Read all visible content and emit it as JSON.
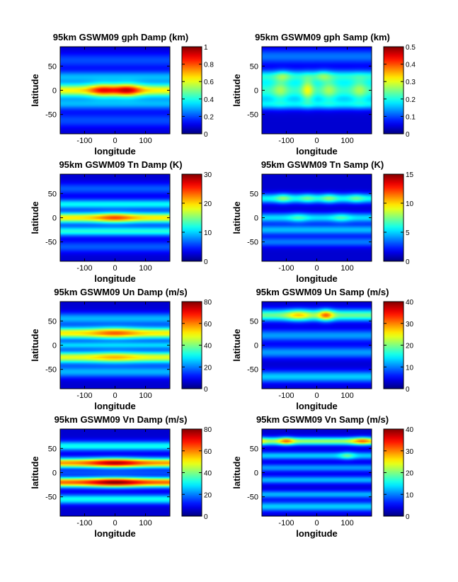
{
  "figure": {
    "background": "#ffffff",
    "colormap": "jet"
  },
  "chart_data": [
    {
      "type": "heatmap",
      "title": "95km GSWM09 gph Damp (km)",
      "xlabel": "longitude",
      "ylabel": "latitude",
      "xlim": [
        -180,
        180
      ],
      "ylim": [
        -90,
        90
      ],
      "xticks": [
        -100,
        0,
        100
      ],
      "yticks": [
        50,
        0,
        -50
      ],
      "colorbar": {
        "min": 0,
        "max": 1,
        "ticks": [
          "1",
          "0.8",
          "0.6",
          "0.4",
          "0.2",
          "0"
        ]
      },
      "features": [
        {
          "lat": 0,
          "lat_width": 14,
          "peak": 0.55,
          "lon_mod": [
            {
              "lon": -40,
              "width": 45,
              "amp": 0.25
            },
            {
              "lon": 40,
              "width": 45,
              "amp": 0.3
            }
          ]
        },
        {
          "lat": 28,
          "lat_width": 12,
          "peak": 0.22
        },
        {
          "lat": -28,
          "lat_width": 12,
          "peak": 0.22
        },
        {
          "lat": 62,
          "lat_width": 15,
          "peak": 0.12
        },
        {
          "lat": -62,
          "lat_width": 15,
          "peak": 0.12
        }
      ]
    },
    {
      "type": "heatmap",
      "title": "95km GSWM09 gph Samp (km)",
      "xlabel": "longitude",
      "ylabel": "latitude",
      "xlim": [
        -180,
        180
      ],
      "ylim": [
        -90,
        90
      ],
      "xticks": [
        -100,
        0,
        100
      ],
      "yticks": [
        50,
        0,
        -50
      ],
      "colorbar": {
        "min": 0,
        "max": 0.5,
        "ticks": [
          "0.5",
          "0.4",
          "0.3",
          "0.2",
          "0.1",
          "0"
        ]
      },
      "features": [
        {
          "lat": 0,
          "lat_width": 25,
          "peak": 0.17,
          "lon_mod": [
            {
              "lon": -120,
              "width": 25,
              "amp": 0.06
            },
            {
              "lon": -30,
              "width": 20,
              "amp": 0.1
            },
            {
              "lon": 40,
              "width": 25,
              "amp": 0.06
            },
            {
              "lon": 140,
              "width": 25,
              "amp": 0.06
            }
          ]
        },
        {
          "lat": 30,
          "lat_width": 12,
          "peak": 0.12,
          "lon_mod": [
            {
              "lon": -110,
              "width": 25,
              "amp": 0.05
            },
            {
              "lon": 20,
              "width": 25,
              "amp": 0.05
            }
          ]
        },
        {
          "lat": -30,
          "lat_width": 10,
          "peak": 0.1
        },
        {
          "lat": 70,
          "lat_width": 15,
          "peak": 0.08
        }
      ]
    },
    {
      "type": "heatmap",
      "title": "95km GSWM09 Tn Damp (K)",
      "xlabel": "longitude",
      "ylabel": "latitude",
      "xlim": [
        -180,
        180
      ],
      "ylim": [
        -90,
        90
      ],
      "xticks": [
        -100,
        0,
        100
      ],
      "yticks": [
        50,
        0,
        -50
      ],
      "colorbar": {
        "min": 0,
        "max": 30,
        "ticks": [
          "30",
          "20",
          "10",
          "0"
        ]
      },
      "features": [
        {
          "lat": 0,
          "lat_width": 11,
          "peak": 17,
          "lon_mod": [
            {
              "lon": 0,
              "width": 60,
              "amp": 5
            }
          ]
        },
        {
          "lat": 28,
          "lat_width": 10,
          "peak": 9
        },
        {
          "lat": -28,
          "lat_width": 10,
          "peak": 10
        },
        {
          "lat": 60,
          "lat_width": 12,
          "peak": 4
        },
        {
          "lat": -60,
          "lat_width": 12,
          "peak": 4
        }
      ]
    },
    {
      "type": "heatmap",
      "title": "95km GSWM09 Tn Samp (K)",
      "xlabel": "longitude",
      "ylabel": "latitude",
      "xlim": [
        -180,
        180
      ],
      "ylim": [
        -90,
        90
      ],
      "xticks": [
        -100,
        0,
        100
      ],
      "yticks": [
        50,
        0,
        -50
      ],
      "colorbar": {
        "min": 0,
        "max": 15,
        "ticks": [
          "15",
          "10",
          "5",
          "0"
        ]
      },
      "features": [
        {
          "lat": 40,
          "lat_width": 10,
          "peak": 4.5,
          "lon_mod": [
            {
              "lon": -110,
              "width": 25,
              "amp": 2
            },
            {
              "lon": -30,
              "width": 25,
              "amp": 1.5
            },
            {
              "lon": 40,
              "width": 25,
              "amp": 2
            },
            {
              "lon": 130,
              "width": 25,
              "amp": 1.5
            }
          ]
        },
        {
          "lat": 0,
          "lat_width": 10,
          "peak": 4,
          "lon_mod": [
            {
              "lon": -60,
              "width": 30,
              "amp": 1.5
            },
            {
              "lon": 80,
              "width": 30,
              "amp": 1.5
            }
          ]
        },
        {
          "lat": -25,
          "lat_width": 10,
          "peak": 3.5
        },
        {
          "lat": -50,
          "lat_width": 10,
          "peak": 2.5
        }
      ]
    },
    {
      "type": "heatmap",
      "title": "95km GSWM09 Un Damp (m/s)",
      "xlabel": "longitude",
      "ylabel": "latitude",
      "xlim": [
        -180,
        180
      ],
      "ylim": [
        -90,
        90
      ],
      "xticks": [
        -100,
        0,
        100
      ],
      "yticks": [
        50,
        0,
        -50
      ],
      "colorbar": {
        "min": 0,
        "max": 80,
        "ticks": [
          "80",
          "60",
          "40",
          "20",
          "0"
        ]
      },
      "features": [
        {
          "lat": 25,
          "lat_width": 12,
          "peak": 45,
          "lon_mod": [
            {
              "lon": 0,
              "width": 70,
              "amp": 12
            }
          ]
        },
        {
          "lat": -25,
          "lat_width": 12,
          "peak": 42,
          "lon_mod": [
            {
              "lon": 0,
              "width": 70,
              "amp": 8
            }
          ]
        },
        {
          "lat": 0,
          "lat_width": 8,
          "peak": 20
        },
        {
          "lat": 55,
          "lat_width": 12,
          "peak": 18
        },
        {
          "lat": -55,
          "lat_width": 12,
          "peak": 18
        }
      ]
    },
    {
      "type": "heatmap",
      "title": "95km GSWM09 Un Samp (m/s)",
      "xlabel": "longitude",
      "ylabel": "latitude",
      "xlim": [
        -180,
        180
      ],
      "ylim": [
        -90,
        90
      ],
      "xticks": [
        -100,
        0,
        100
      ],
      "yticks": [
        50,
        0,
        -50
      ],
      "colorbar": {
        "min": 0,
        "max": 40,
        "ticks": [
          "40",
          "30",
          "20",
          "10",
          "0"
        ]
      },
      "features": [
        {
          "lat": 62,
          "lat_width": 12,
          "peak": 16,
          "lon_mod": [
            {
              "lon": -60,
              "width": 40,
              "amp": 8
            },
            {
              "lon": 30,
              "width": 25,
              "amp": 12
            }
          ]
        },
        {
          "lat": 20,
          "lat_width": 12,
          "peak": 8
        },
        {
          "lat": -15,
          "lat_width": 12,
          "peak": 8
        },
        {
          "lat": -65,
          "lat_width": 12,
          "peak": 10
        }
      ]
    },
    {
      "type": "heatmap",
      "title": "95km GSWM09 Vn Damp (m/s)",
      "xlabel": "longitude",
      "ylabel": "latitude",
      "xlim": [
        -180,
        180
      ],
      "ylim": [
        -90,
        90
      ],
      "xticks": [
        -100,
        0,
        100
      ],
      "yticks": [
        50,
        0,
        -50
      ],
      "colorbar": {
        "min": 0,
        "max": 80,
        "ticks": [
          "80",
          "60",
          "40",
          "20",
          "0"
        ]
      },
      "features": [
        {
          "lat": 20,
          "lat_width": 10,
          "peak": 52,
          "lon_mod": [
            {
              "lon": 0,
              "width": 80,
              "amp": 18
            }
          ]
        },
        {
          "lat": -20,
          "lat_width": 10,
          "peak": 56,
          "lon_mod": [
            {
              "lon": 0,
              "width": 80,
              "amp": 18
            }
          ]
        },
        {
          "lat": 55,
          "lat_width": 10,
          "peak": 25
        },
        {
          "lat": -55,
          "lat_width": 10,
          "peak": 25
        },
        {
          "lat": 0,
          "lat_width": 5,
          "peak": 8
        }
      ]
    },
    {
      "type": "heatmap",
      "title": "95km GSWM09 Vn Samp (m/s)",
      "xlabel": "longitude",
      "ylabel": "latitude",
      "xlim": [
        -180,
        180
      ],
      "ylim": [
        -90,
        90
      ],
      "xticks": [
        -100,
        0,
        100
      ],
      "yticks": [
        50,
        0,
        -50
      ],
      "colorbar": {
        "min": 0,
        "max": 40,
        "ticks": [
          "40",
          "30",
          "20",
          "10",
          "0"
        ]
      },
      "features": [
        {
          "lat": 65,
          "lat_width": 8,
          "peak": 18,
          "lon_mod": [
            {
              "lon": -100,
              "width": 25,
              "amp": 10
            },
            {
              "lon": 150,
              "width": 35,
              "amp": 10
            }
          ]
        },
        {
          "lat": 35,
          "lat_width": 8,
          "peak": 10,
          "lon_mod": [
            {
              "lon": 100,
              "width": 25,
              "amp": 6
            }
          ]
        },
        {
          "lat": 10,
          "lat_width": 8,
          "peak": 8
        },
        {
          "lat": -15,
          "lat_width": 8,
          "peak": 9
        },
        {
          "lat": -45,
          "lat_width": 8,
          "peak": 9
        },
        {
          "lat": -70,
          "lat_width": 10,
          "peak": 10
        }
      ]
    }
  ]
}
